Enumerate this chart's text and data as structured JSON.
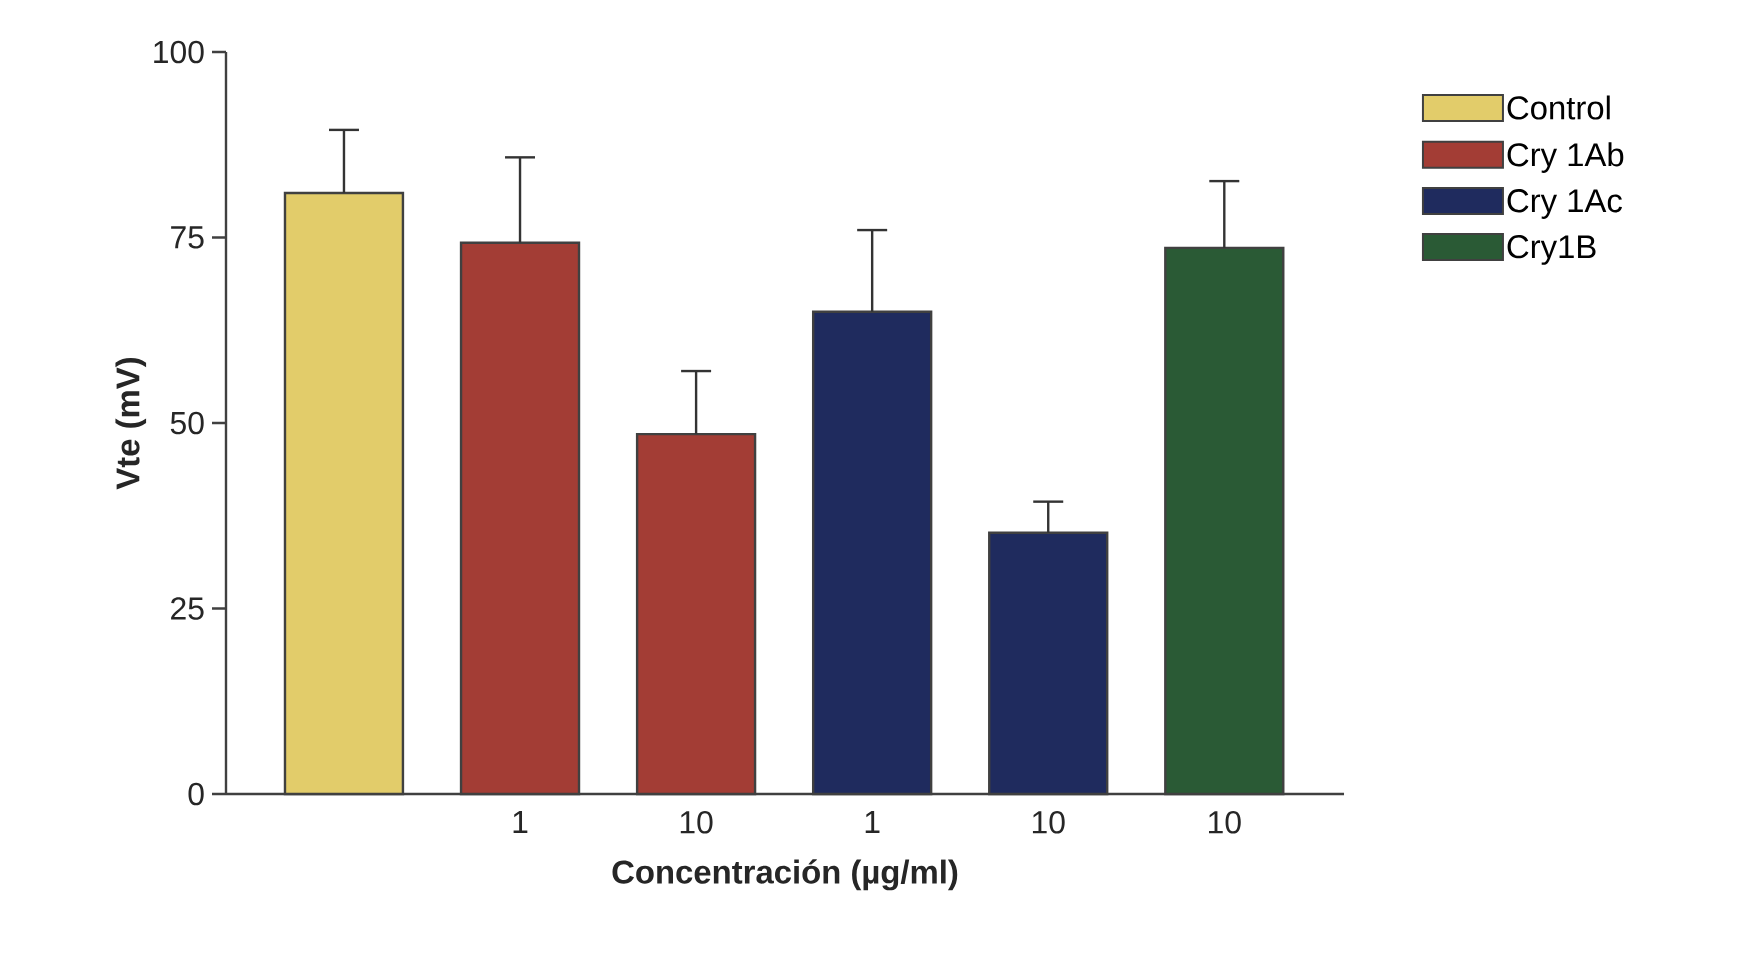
{
  "chart_data": {
    "type": "bar",
    "xlabel": "Concentración (µg/ml)",
    "ylabel": "Vte (mV)",
    "categories": [
      null,
      "1",
      "10",
      "1",
      "10",
      "10"
    ],
    "series": [
      {
        "name": "Control",
        "color": "#e2cc6a",
        "values": [
          81,
          null,
          null,
          null,
          null,
          null
        ],
        "errors": [
          [
            81,
            89.5
          ],
          null,
          null,
          null,
          null,
          null
        ]
      },
      {
        "name": "Cry 1Ab",
        "color": "#a33d35",
        "values": [
          null,
          74.3,
          48.5,
          null,
          null,
          null
        ],
        "errors": [
          null,
          [
            74.3,
            85.8
          ],
          [
            48.5,
            57
          ],
          null,
          null,
          null
        ]
      },
      {
        "name": "Cry 1Ac",
        "color": "#1f2b5e",
        "values": [
          null,
          null,
          null,
          65,
          35.2,
          null
        ],
        "errors": [
          null,
          null,
          null,
          [
            65,
            76
          ],
          [
            35.2,
            39.4
          ],
          null
        ]
      },
      {
        "name": "Cry1B",
        "color": "#2a5a35",
        "values": [
          null,
          null,
          null,
          null,
          null,
          73.6
        ],
        "errors": [
          null,
          null,
          null,
          null,
          null,
          [
            73.6,
            82.6
          ]
        ]
      }
    ],
    "ylim": [
      0,
      100
    ],
    "yticks": [
      0,
      25,
      50,
      75,
      100
    ],
    "grid": false,
    "legend": "top right"
  }
}
